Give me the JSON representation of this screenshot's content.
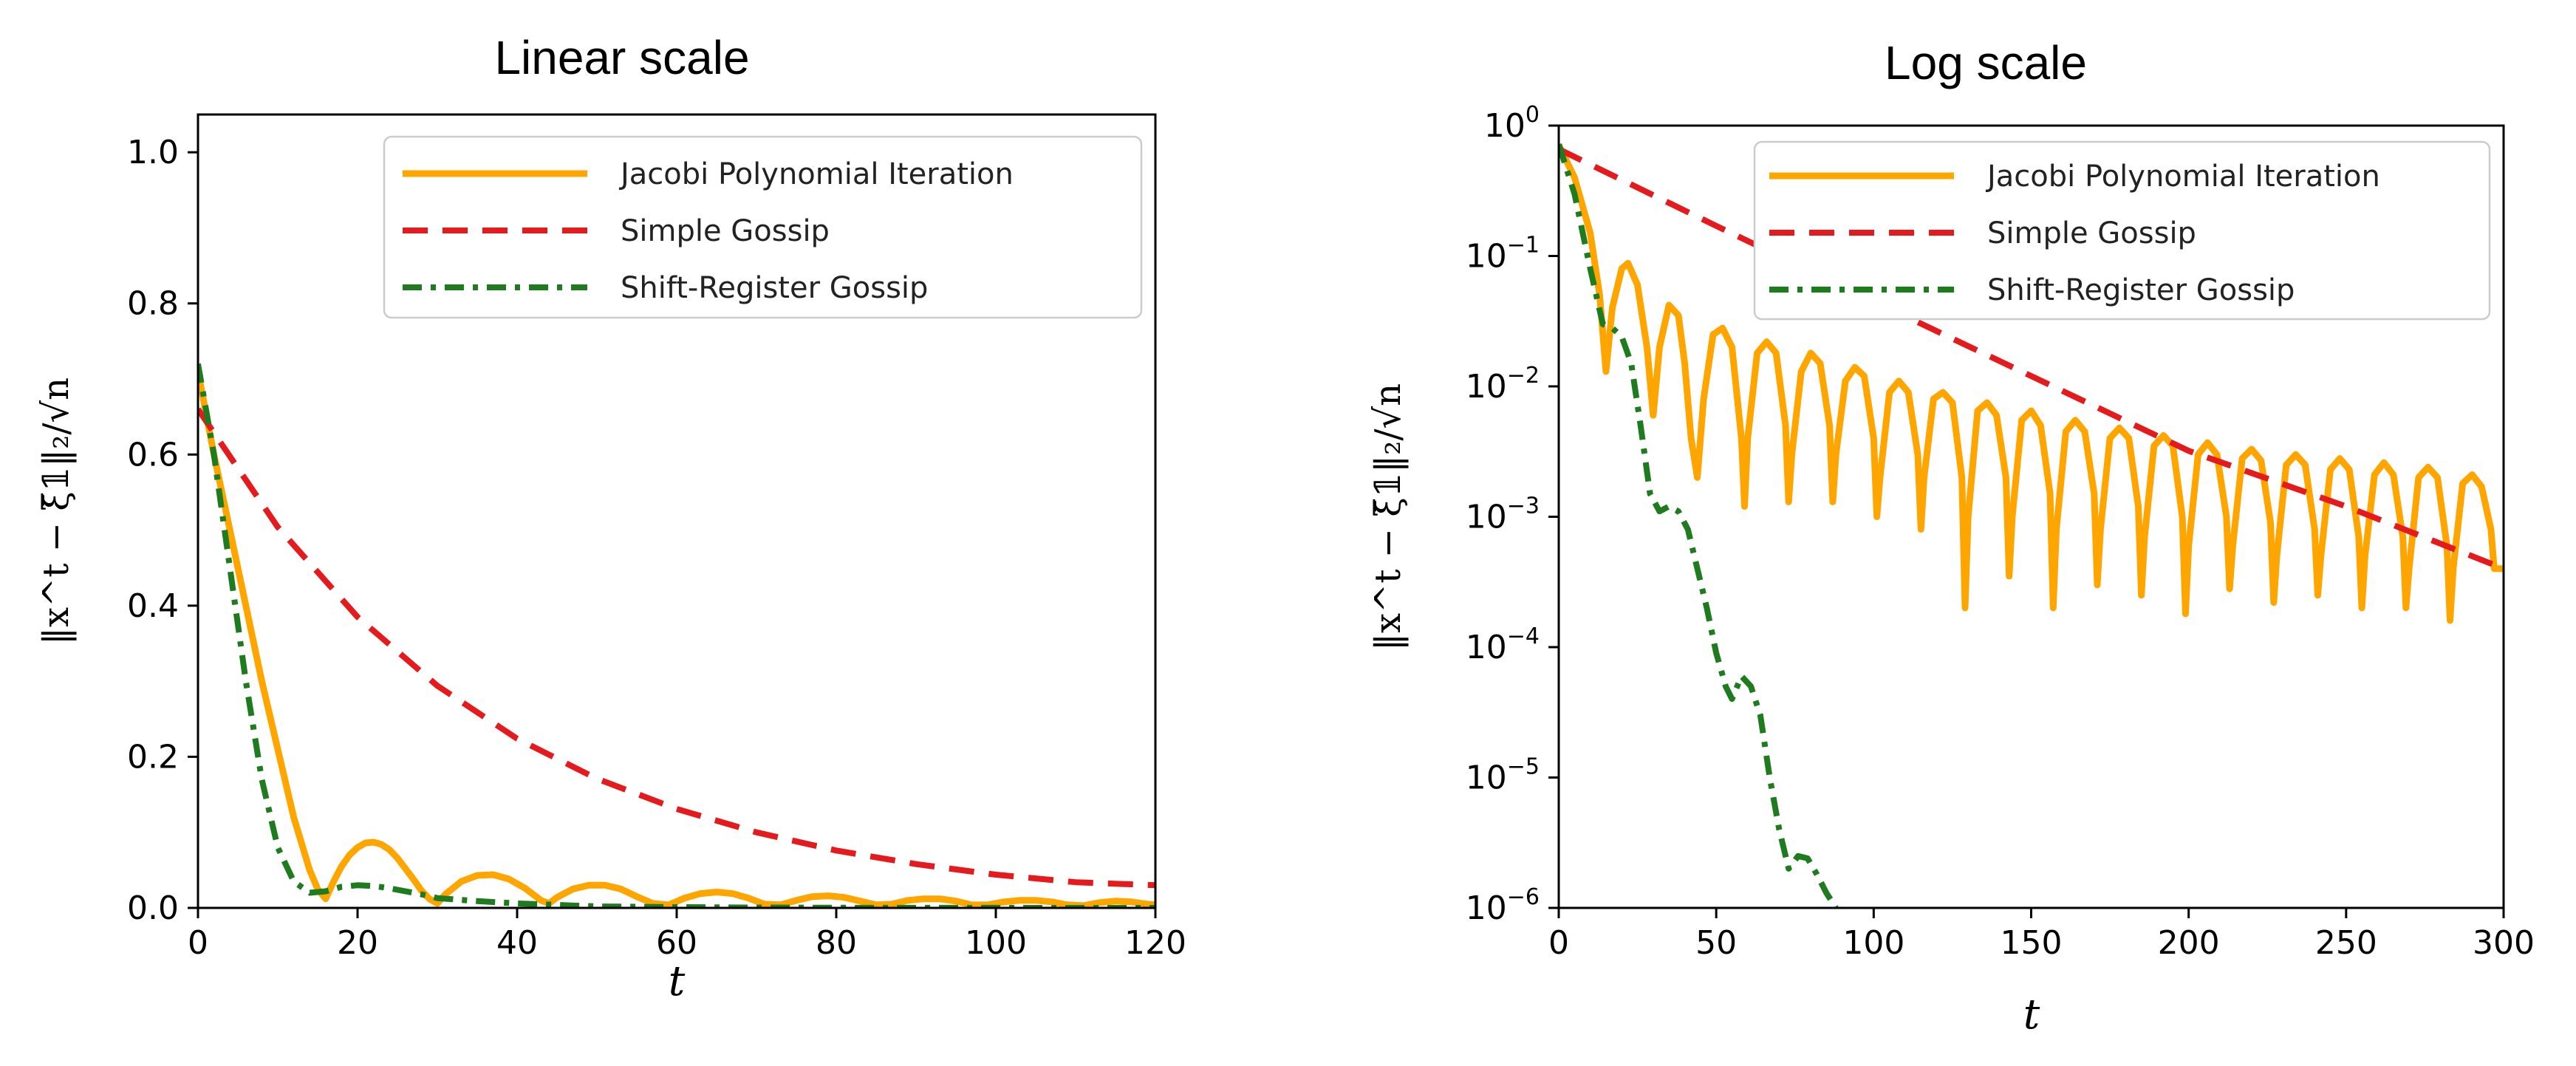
{
  "colors": {
    "jacobi": "#FFA500",
    "simple": "#E41A1C",
    "shift": "#1E7B1E"
  },
  "chart_data": [
    {
      "type": "line",
      "title": "Linear scale",
      "xlabel": "t",
      "ylabel": "‖x^t − ξ̄𝟙‖₂/√n",
      "yscale": "linear",
      "xlim": [
        0,
        120
      ],
      "ylim": [
        0,
        1.05
      ],
      "xticks": [
        0,
        20,
        40,
        60,
        80,
        100,
        120
      ],
      "xtick_labels": [
        "0",
        "20",
        "40",
        "60",
        "80",
        "100",
        "120"
      ],
      "yticks": [
        0.0,
        0.2,
        0.4,
        0.6,
        0.8,
        1.0
      ],
      "ytick_labels": [
        "0.0",
        "0.2",
        "0.4",
        "0.6",
        "0.8",
        "1.0"
      ],
      "legend": "top-right",
      "series": [
        {
          "name": "Jacobi Polynomial Iteration",
          "style": "solid",
          "x": [
            0,
            2,
            4,
            6,
            8,
            10,
            12,
            14,
            15,
            16,
            17,
            18,
            19,
            20,
            21,
            22,
            23,
            24,
            25,
            26,
            27,
            28,
            29,
            30,
            31,
            33,
            35,
            37,
            39,
            41,
            43,
            44,
            45,
            47,
            49,
            51,
            53,
            55,
            57,
            59,
            61,
            63,
            65,
            67,
            69,
            71,
            73,
            75,
            77,
            79,
            81,
            83,
            85,
            87,
            89,
            91,
            93,
            95,
            97,
            99,
            101,
            103,
            105,
            107,
            109,
            111,
            113,
            115,
            117,
            119,
            120
          ],
          "y": [
            0.71,
            0.6,
            0.5,
            0.4,
            0.3,
            0.21,
            0.12,
            0.05,
            0.025,
            0.012,
            0.035,
            0.055,
            0.07,
            0.08,
            0.086,
            0.087,
            0.084,
            0.077,
            0.066,
            0.052,
            0.038,
            0.023,
            0.012,
            0.006,
            0.018,
            0.035,
            0.043,
            0.044,
            0.038,
            0.026,
            0.01,
            0.006,
            0.014,
            0.025,
            0.03,
            0.03,
            0.025,
            0.015,
            0.006,
            0.004,
            0.013,
            0.019,
            0.021,
            0.019,
            0.013,
            0.005,
            0.004,
            0.01,
            0.015,
            0.016,
            0.014,
            0.009,
            0.004,
            0.005,
            0.01,
            0.012,
            0.012,
            0.009,
            0.004,
            0.004,
            0.008,
            0.01,
            0.01,
            0.008,
            0.004,
            0.003,
            0.007,
            0.009,
            0.008,
            0.005,
            0.004
          ]
        },
        {
          "name": "Simple Gossip",
          "style": "dashed",
          "x": [
            0,
            10,
            20,
            30,
            40,
            50,
            60,
            70,
            80,
            90,
            100,
            110,
            120
          ],
          "y": [
            0.66,
            0.504,
            0.385,
            0.294,
            0.224,
            0.171,
            0.131,
            0.1,
            0.076,
            0.058,
            0.044,
            0.034,
            0.03
          ]
        },
        {
          "name": "Shift-Register Gossip",
          "style": "dashdot",
          "x": [
            0,
            2,
            4,
            6,
            8,
            10,
            12,
            14,
            16,
            18,
            20,
            22,
            24,
            26,
            28,
            30,
            35,
            40,
            45,
            50,
            60,
            70,
            80,
            90,
            100,
            110,
            120
          ],
          "y": [
            0.72,
            0.6,
            0.45,
            0.3,
            0.17,
            0.08,
            0.035,
            0.02,
            0.022,
            0.028,
            0.03,
            0.029,
            0.026,
            0.022,
            0.018,
            0.013,
            0.009,
            0.006,
            0.004,
            0.002,
            0.001,
            0.0005,
            0.0002,
            0.0001,
            5e-05,
            2e-05,
            1e-05
          ]
        }
      ]
    },
    {
      "type": "line",
      "title": "Log scale",
      "xlabel": "t",
      "ylabel": "‖x^t − ξ̄𝟙‖₂/√n",
      "yscale": "log",
      "xlim": [
        0,
        300
      ],
      "ylim": [
        1e-06,
        1
      ],
      "xticks": [
        0,
        50,
        100,
        150,
        200,
        250,
        300
      ],
      "xtick_labels": [
        "0",
        "50",
        "100",
        "150",
        "200",
        "250",
        "300"
      ],
      "yticks": [
        1,
        0.1,
        0.01,
        0.001,
        0.0001,
        1e-05,
        1e-06
      ],
      "ytick_labels": [
        {
          "base": "10",
          "exp": "0"
        },
        {
          "base": "10",
          "exp": "−1"
        },
        {
          "base": "10",
          "exp": "−2"
        },
        {
          "base": "10",
          "exp": "−3"
        },
        {
          "base": "10",
          "exp": "−4"
        },
        {
          "base": "10",
          "exp": "−5"
        },
        {
          "base": "10",
          "exp": "−6"
        }
      ],
      "legend": "top-right",
      "series": [
        {
          "name": "Jacobi Polynomial Iteration",
          "style": "solid",
          "x": [
            0,
            5,
            10,
            13,
            15,
            17,
            20,
            22,
            25,
            28,
            30,
            32,
            35,
            38,
            40,
            42,
            44,
            46,
            49,
            52,
            55,
            58,
            59,
            60,
            63,
            66,
            69,
            72,
            73,
            74,
            77,
            80,
            83,
            86,
            87,
            88,
            91,
            94,
            97,
            100,
            101,
            102,
            105,
            108,
            111,
            114,
            115,
            116,
            119,
            122,
            125,
            128,
            129,
            130,
            133,
            136,
            139,
            142,
            143,
            144,
            147,
            150,
            153,
            156,
            157,
            158,
            161,
            164,
            167,
            170,
            171,
            172,
            175,
            178,
            181,
            184,
            185,
            186,
            189,
            192,
            195,
            198,
            199,
            200,
            203,
            206,
            209,
            212,
            213,
            214,
            217,
            220,
            223,
            226,
            227,
            228,
            231,
            234,
            237,
            240,
            241,
            242,
            245,
            248,
            251,
            254,
            255,
            256,
            259,
            262,
            265,
            268,
            269,
            270,
            273,
            276,
            279,
            282,
            283,
            284,
            287,
            290,
            293,
            296,
            297,
            300
          ],
          "y": [
            0.71,
            0.4,
            0.15,
            0.05,
            0.013,
            0.04,
            0.08,
            0.088,
            0.06,
            0.02,
            0.006,
            0.02,
            0.042,
            0.035,
            0.015,
            0.004,
            0.002,
            0.008,
            0.025,
            0.028,
            0.02,
            0.004,
            0.0012,
            0.004,
            0.018,
            0.022,
            0.018,
            0.005,
            0.0013,
            0.003,
            0.013,
            0.018,
            0.015,
            0.005,
            0.0013,
            0.003,
            0.011,
            0.014,
            0.012,
            0.004,
            0.001,
            0.002,
            0.009,
            0.011,
            0.009,
            0.003,
            0.0008,
            0.002,
            0.008,
            0.009,
            0.0075,
            0.002,
            0.0002,
            0.001,
            0.0065,
            0.0075,
            0.006,
            0.002,
            0.00035,
            0.001,
            0.0055,
            0.0065,
            0.005,
            0.0015,
            0.0002,
            0.0008,
            0.0045,
            0.0055,
            0.0045,
            0.0015,
            0.0003,
            0.0008,
            0.004,
            0.0048,
            0.004,
            0.0012,
            0.00025,
            0.0007,
            0.0035,
            0.0042,
            0.0035,
            0.001,
            0.00018,
            0.0006,
            0.003,
            0.0037,
            0.003,
            0.001,
            0.00028,
            0.0006,
            0.0028,
            0.0033,
            0.0027,
            0.0009,
            0.00022,
            0.0005,
            0.0025,
            0.003,
            0.0025,
            0.0008,
            0.00025,
            0.0005,
            0.0023,
            0.0028,
            0.0023,
            0.0007,
            0.0002,
            0.0005,
            0.0021,
            0.0026,
            0.0021,
            0.0007,
            0.0002,
            0.0004,
            0.002,
            0.0024,
            0.002,
            0.0006,
            0.00016,
            0.0004,
            0.0018,
            0.0021,
            0.0017,
            0.0008,
            0.0004,
            0.0004
          ]
        },
        {
          "name": "Simple Gossip",
          "style": "dashed",
          "x": [
            0,
            50,
            100,
            150,
            200,
            250,
            300
          ],
          "y": [
            0.66,
            0.17,
            0.045,
            0.012,
            0.0032,
            0.0012,
            0.0004
          ]
        },
        {
          "name": "Shift-Register Gossip",
          "style": "dashdot",
          "x": [
            0,
            5,
            10,
            14,
            17,
            20,
            23,
            26,
            29,
            32,
            35,
            38,
            41,
            44,
            47,
            50,
            53,
            55,
            58,
            61,
            64,
            67,
            70,
            73,
            76,
            79,
            82,
            85,
            88
          ],
          "y": [
            0.72,
            0.3,
            0.08,
            0.03,
            0.028,
            0.024,
            0.015,
            0.005,
            0.0015,
            0.0011,
            0.0012,
            0.0011,
            0.0008,
            0.0004,
            0.0002,
            9e-05,
            5e-05,
            4e-05,
            6e-05,
            5e-05,
            3e-05,
            1e-05,
            4e-06,
            2e-06,
            2.5e-06,
            2.4e-06,
            1.8e-06,
            1.3e-06,
            1e-06
          ]
        }
      ]
    }
  ]
}
